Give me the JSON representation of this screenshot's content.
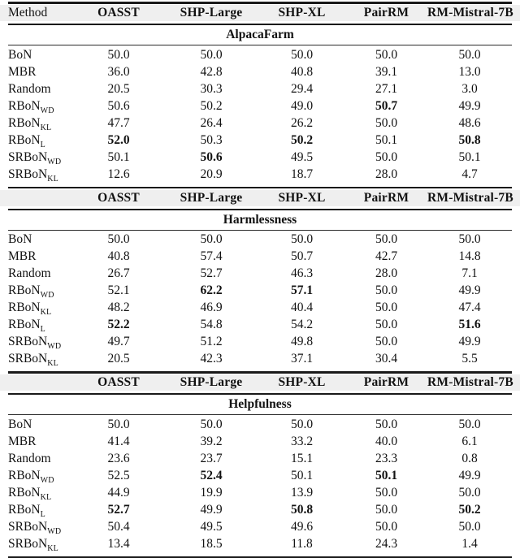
{
  "table": {
    "method_header": "Method",
    "columns": [
      "OASST",
      "SHP-Large",
      "SHP-XL",
      "PairRM",
      "RM-Mistral-7B"
    ],
    "colors": {
      "header_band": "#efefef",
      "rule": "#191919",
      "text": "#121212"
    },
    "sections": [
      {
        "title": "AlpacaFarm",
        "show_method_header": true,
        "rows": [
          {
            "method": "BoN",
            "sub": "",
            "values": [
              "50.0",
              "50.0",
              "50.0",
              "50.0",
              "50.0"
            ],
            "bold": []
          },
          {
            "method": "MBR",
            "sub": "",
            "values": [
              "36.0",
              "42.8",
              "40.8",
              "39.1",
              "13.0"
            ],
            "bold": []
          },
          {
            "method": "Random",
            "sub": "",
            "values": [
              "20.5",
              "30.3",
              "29.4",
              "27.1",
              "3.0"
            ],
            "bold": []
          },
          {
            "method": "RBoN",
            "sub": "WD",
            "values": [
              "50.6",
              "50.2",
              "49.0",
              "50.7",
              "49.9"
            ],
            "bold": [
              3
            ]
          },
          {
            "method": "RBoN",
            "sub": "KL",
            "values": [
              "47.7",
              "26.4",
              "26.2",
              "50.0",
              "48.6"
            ],
            "bold": []
          },
          {
            "method": "RBoN",
            "sub": "L",
            "values": [
              "52.0",
              "50.3",
              "50.2",
              "50.1",
              "50.8"
            ],
            "bold": [
              0,
              2,
              4
            ]
          },
          {
            "method": "SRBoN",
            "sub": "WD",
            "values": [
              "50.1",
              "50.6",
              "49.5",
              "50.0",
              "50.1"
            ],
            "bold": [
              1
            ]
          },
          {
            "method": "SRBoN",
            "sub": "KL",
            "values": [
              "12.6",
              "20.9",
              "18.7",
              "28.0",
              "4.7"
            ],
            "bold": []
          }
        ]
      },
      {
        "title": "Harmlessness",
        "show_method_header": false,
        "rows": [
          {
            "method": "BoN",
            "sub": "",
            "values": [
              "50.0",
              "50.0",
              "50.0",
              "50.0",
              "50.0"
            ],
            "bold": []
          },
          {
            "method": "MBR",
            "sub": "",
            "values": [
              "40.8",
              "57.4",
              "50.7",
              "42.7",
              "14.8"
            ],
            "bold": []
          },
          {
            "method": "Random",
            "sub": "",
            "values": [
              "26.7",
              "52.7",
              "46.3",
              "28.0",
              "7.1"
            ],
            "bold": []
          },
          {
            "method": "RBoN",
            "sub": "WD",
            "values": [
              "52.1",
              "62.2",
              "57.1",
              "50.0",
              "49.9"
            ],
            "bold": [
              1,
              2
            ]
          },
          {
            "method": "RBoN",
            "sub": "KL",
            "values": [
              "48.2",
              "46.9",
              "40.4",
              "50.0",
              "47.4"
            ],
            "bold": []
          },
          {
            "method": "RBoN",
            "sub": "L",
            "values": [
              "52.2",
              "54.8",
              "54.2",
              "50.0",
              "51.6"
            ],
            "bold": [
              0,
              4
            ]
          },
          {
            "method": "SRBoN",
            "sub": "WD",
            "values": [
              "49.7",
              "51.2",
              "49.8",
              "50.0",
              "49.9"
            ],
            "bold": []
          },
          {
            "method": "SRBoN",
            "sub": "KL",
            "values": [
              "20.5",
              "42.3",
              "37.1",
              "30.4",
              "5.5"
            ],
            "bold": []
          }
        ]
      },
      {
        "title": "Helpfulness",
        "show_method_header": false,
        "rows": [
          {
            "method": "BoN",
            "sub": "",
            "values": [
              "50.0",
              "50.0",
              "50.0",
              "50.0",
              "50.0"
            ],
            "bold": []
          },
          {
            "method": "MBR",
            "sub": "",
            "values": [
              "41.4",
              "39.2",
              "33.2",
              "40.0",
              "6.1"
            ],
            "bold": []
          },
          {
            "method": "Random",
            "sub": "",
            "values": [
              "23.6",
              "23.7",
              "15.1",
              "23.3",
              "0.8"
            ],
            "bold": []
          },
          {
            "method": "RBoN",
            "sub": "WD",
            "values": [
              "52.5",
              "52.4",
              "50.1",
              "50.1",
              "49.9"
            ],
            "bold": [
              1,
              3
            ]
          },
          {
            "method": "RBoN",
            "sub": "KL",
            "values": [
              "44.9",
              "19.9",
              "13.9",
              "50.0",
              "50.0"
            ],
            "bold": []
          },
          {
            "method": "RBoN",
            "sub": "L",
            "values": [
              "52.7",
              "49.9",
              "50.8",
              "50.0",
              "50.2"
            ],
            "bold": [
              0,
              2,
              4
            ]
          },
          {
            "method": "SRBoN",
            "sub": "WD",
            "values": [
              "50.4",
              "49.5",
              "49.6",
              "50.0",
              "50.0"
            ],
            "bold": []
          },
          {
            "method": "SRBoN",
            "sub": "KL",
            "values": [
              "13.4",
              "18.5",
              "11.8",
              "24.3",
              "1.4"
            ],
            "bold": []
          }
        ]
      }
    ]
  }
}
